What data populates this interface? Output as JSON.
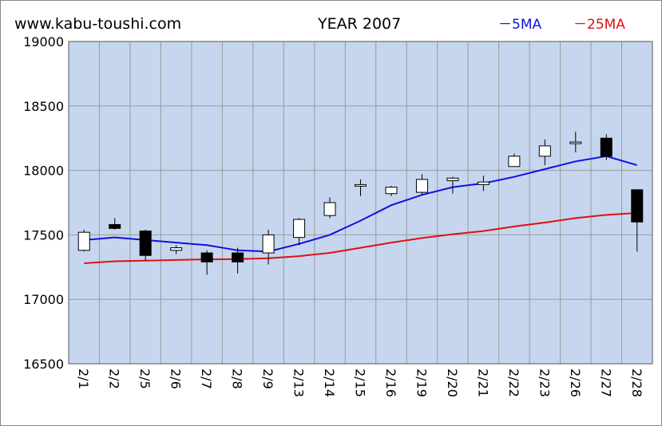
{
  "header": {
    "site": "www.kabu-toushi.com",
    "title": "YEAR 2007",
    "legend_5ma": "－5MA",
    "legend_25ma": "－25MA"
  },
  "colors": {
    "plot_bg": "#c6d6ef",
    "grid": "#9a9a9a",
    "up_candle": "#ffffff",
    "down_candle": "#000000",
    "ma5": "#1010e0",
    "ma25": "#e01010"
  },
  "chart_data": {
    "type": "candlestick",
    "title": "YEAR 2007",
    "ylim": [
      16500,
      19000
    ],
    "yticks": [
      16500,
      17000,
      17500,
      18000,
      18500,
      19000
    ],
    "grid": true,
    "legend_position": "top-right",
    "categories": [
      "2/1",
      "2/2",
      "2/5",
      "2/6",
      "2/7",
      "2/8",
      "2/9",
      "2/13",
      "2/14",
      "2/15",
      "2/16",
      "2/19",
      "2/20",
      "2/21",
      "2/22",
      "2/23",
      "2/26",
      "2/27",
      "2/28"
    ],
    "candles": [
      {
        "date": "2/1",
        "open": 17380,
        "high": 17540,
        "low": 17370,
        "close": 17520
      },
      {
        "date": "2/2",
        "open": 17580,
        "high": 17630,
        "low": 17540,
        "close": 17550
      },
      {
        "date": "2/5",
        "open": 17530,
        "high": 17540,
        "low": 17300,
        "close": 17340
      },
      {
        "date": "2/6",
        "open": 17380,
        "high": 17420,
        "low": 17350,
        "close": 17400
      },
      {
        "date": "2/7",
        "open": 17360,
        "high": 17380,
        "low": 17190,
        "close": 17290
      },
      {
        "date": "2/8",
        "open": 17360,
        "high": 17400,
        "low": 17200,
        "close": 17290
      },
      {
        "date": "2/9",
        "open": 17360,
        "high": 17540,
        "low": 17270,
        "close": 17500
      },
      {
        "date": "2/13",
        "open": 17480,
        "high": 17630,
        "low": 17420,
        "close": 17620
      },
      {
        "date": "2/14",
        "open": 17650,
        "high": 17790,
        "low": 17630,
        "close": 17750
      },
      {
        "date": "2/15",
        "open": 17880,
        "high": 17930,
        "low": 17800,
        "close": 17890
      },
      {
        "date": "2/16",
        "open": 17820,
        "high": 17880,
        "low": 17800,
        "close": 17870
      },
      {
        "date": "2/19",
        "open": 17830,
        "high": 17970,
        "low": 17810,
        "close": 17930
      },
      {
        "date": "2/20",
        "open": 17920,
        "high": 17950,
        "low": 17820,
        "close": 17940
      },
      {
        "date": "2/21",
        "open": 17890,
        "high": 17960,
        "low": 17840,
        "close": 17910
      },
      {
        "date": "2/22",
        "open": 18030,
        "high": 18130,
        "low": 18030,
        "close": 18110
      },
      {
        "date": "2/23",
        "open": 18110,
        "high": 18240,
        "low": 18040,
        "close": 18190
      },
      {
        "date": "2/26",
        "open": 18210,
        "high": 18300,
        "low": 18140,
        "close": 18220
      },
      {
        "date": "2/27",
        "open": 18250,
        "high": 18280,
        "low": 18080,
        "close": 18110
      },
      {
        "date": "2/28",
        "open": 17850,
        "high": 17850,
        "low": 17370,
        "close": 17600
      }
    ],
    "series": [
      {
        "name": "5MA",
        "values": [
          17460,
          17480,
          17460,
          17440,
          17420,
          17380,
          17370,
          17430,
          17500,
          17610,
          17730,
          17810,
          17870,
          17900,
          17950,
          18010,
          18070,
          18110,
          18040
        ]
      },
      {
        "name": "25MA",
        "values": [
          17280,
          17295,
          17300,
          17305,
          17310,
          17312,
          17318,
          17335,
          17360,
          17400,
          17440,
          17475,
          17505,
          17530,
          17565,
          17595,
          17630,
          17655,
          17670
        ]
      }
    ]
  }
}
